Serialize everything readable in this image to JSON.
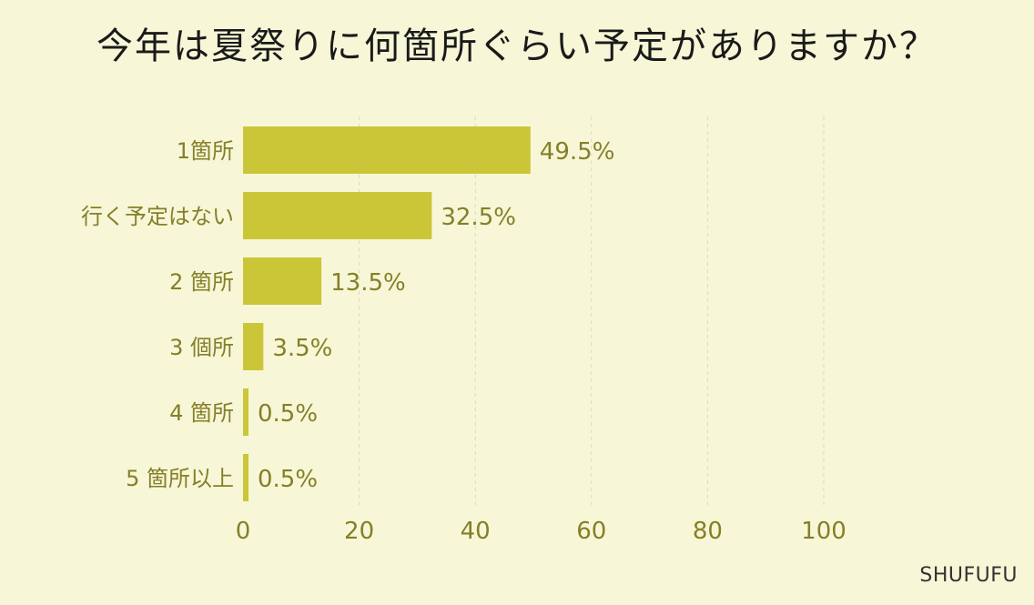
{
  "title": "今年は夏祭りに何箇所ぐらい予定がありますか？",
  "credit": "SHUFUFU",
  "colors": {
    "background": "#f7f7d7",
    "bar": "#cbc637",
    "label_text": "#857f28",
    "title_text": "#1a1a1a",
    "grid": "#d9d9c6"
  },
  "chart_data": {
    "type": "bar",
    "orientation": "horizontal",
    "categories": [
      "1箇所",
      "行く予定はない",
      "2 箇所",
      "3 個所",
      "4 箇所",
      "5 箇所以上"
    ],
    "values": [
      49.5,
      32.5,
      13.5,
      3.5,
      0.5,
      0.5
    ],
    "value_labels": [
      "49.5%",
      "32.5%",
      "13.5%",
      "3.5%",
      "0.5%",
      "0.5%"
    ],
    "x_ticks": [
      0,
      20,
      40,
      60,
      80,
      100
    ],
    "xlim": [
      0,
      100
    ],
    "grid": "vertical dashed",
    "legend": "none"
  }
}
